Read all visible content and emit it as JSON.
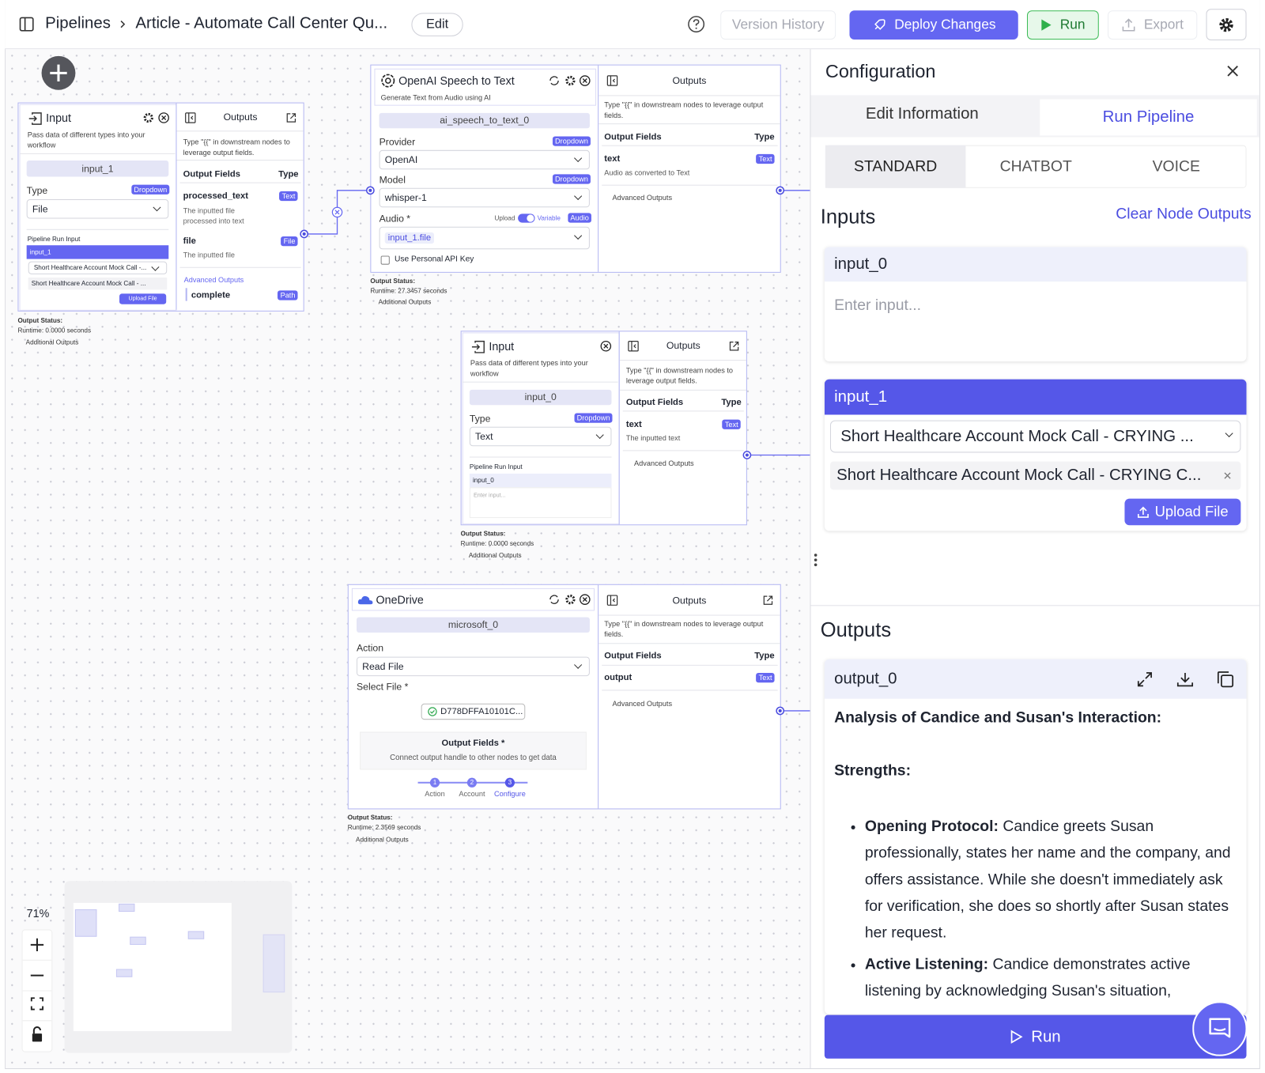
{
  "header": {
    "breadcrumb_root": "Pipelines",
    "pipeline_name": "Article - Automate Call Center Qu...",
    "edit_button": "Edit",
    "version_history": "Version History",
    "deploy_button": "Deploy Changes",
    "run_button": "Run",
    "export_button": "Export"
  },
  "canvas": {
    "zoom": "71%",
    "nodes": [
      {
        "title": "Input",
        "description": "Pass data of different types into your workflow",
        "node_id": "input_1",
        "field": {
          "label": "Type",
          "badge": "Dropdown",
          "value": "File"
        },
        "run_input": {
          "label": "Pipeline Run Input",
          "name": "input_1",
          "selected_file": "Short Healthcare Account Mock Call -...",
          "file_chip": "Short Healthcare Account Mock Call - ...",
          "upload_button": "Upload File"
        },
        "outputs": {
          "title": "Outputs",
          "hint": "Type \"{{\" in downstream nodes to leverage output fields.",
          "fields_header": "Output Fields",
          "type_header": "Type",
          "fields": [
            {
              "name": "processed_text",
              "type": "Text",
              "description": "The inputted file processed into text"
            },
            {
              "name": "file",
              "type": "File",
              "description": "The inputted file"
            }
          ],
          "advanced": "Advanced Outputs",
          "advanced_fields": [
            {
              "name": "complete",
              "type": "Path"
            }
          ]
        },
        "status": {
          "label": "Output Status:",
          "runtime": "Runtime: 0.0000 seconds",
          "additional": "Additional Outputs"
        }
      },
      {
        "title": "OpenAI Speech to Text",
        "subtitle": "Generate Text from Audio using AI",
        "node_id": "ai_speech_to_text_0",
        "fields": [
          {
            "label": "Provider",
            "badge": "Dropdown",
            "value": "OpenAI"
          },
          {
            "label": "Model",
            "badge": "Dropdown",
            "value": "whisper-1"
          }
        ],
        "audio": {
          "label": "Audio *",
          "toggle_left": "Upload",
          "toggle_right": "Variable",
          "badge": "Audio",
          "chip": "input_1.file"
        },
        "api_key_checkbox": "Use Personal API Key",
        "outputs": {
          "title": "Outputs",
          "hint": "Type \"{{\" in downstream nodes to leverage output fields.",
          "fields_header": "Output Fields",
          "type_header": "Type",
          "fields": [
            {
              "name": "text",
              "type": "Text",
              "description": "Audio as converted to Text"
            }
          ],
          "advanced": "Advanced Outputs"
        },
        "status": {
          "label": "Output Status:",
          "runtime": "Runtime: 27.3457 seconds",
          "additional": "Additional Outputs"
        }
      },
      {
        "title": "Input",
        "description": "Pass data of different types into your workflow",
        "node_id": "input_0",
        "field": {
          "label": "Type",
          "badge": "Dropdown",
          "value": "Text"
        },
        "run_input": {
          "label": "Pipeline Run Input",
          "name": "input_0",
          "placeholder": "Enter input..."
        },
        "outputs": {
          "title": "Outputs",
          "hint": "Type \"{{\" in downstream nodes to leverage output fields.",
          "fields_header": "Output Fields",
          "type_header": "Type",
          "fields": [
            {
              "name": "text",
              "type": "Text",
              "description": "The inputted text"
            }
          ],
          "advanced": "Advanced Outputs"
        },
        "status": {
          "label": "Output Status:",
          "runtime": "Runtime: 0.0000 seconds",
          "additional": "Additional Outputs"
        }
      },
      {
        "title": "OneDrive",
        "node_id": "microsoft_0",
        "action": {
          "label": "Action",
          "value": "Read File"
        },
        "select_file": {
          "label": "Select File *",
          "value": "D778DFFA10101C..."
        },
        "output_fields_box": {
          "title": "Output Fields *",
          "hint": "Connect output handle to other nodes to get data"
        },
        "steps": [
          {
            "number": 1,
            "label": "Action"
          },
          {
            "number": 2,
            "label": "Account"
          },
          {
            "number": 3,
            "label": "Configure"
          }
        ],
        "outputs": {
          "title": "Outputs",
          "hint": "Type \"{{\" in downstream nodes to leverage output fields.",
          "fields_header": "Output Fields",
          "type_header": "Type",
          "fields": [
            {
              "name": "output",
              "type": "Text"
            }
          ],
          "advanced": "Advanced Outputs"
        },
        "status": {
          "label": "Output Status:",
          "runtime": "Runtime: 2.3569 seconds",
          "additional": "Additional Outputs"
        }
      }
    ]
  },
  "config": {
    "title": "Configuration",
    "tabs": [
      "Edit Information",
      "Run Pipeline"
    ],
    "modes": [
      "STANDARD",
      "CHATBOT",
      "VOICE"
    ],
    "inputs_title": "Inputs",
    "clear_button": "Clear Node Outputs",
    "inputs": [
      {
        "name": "input_0",
        "placeholder": "Enter input..."
      },
      {
        "name": "input_1",
        "selected": "Short Healthcare Account Mock Call - CRYING ...",
        "file_chip": "Short Healthcare Account Mock Call - CRYING C...",
        "upload_button": "Upload File"
      }
    ],
    "outputs_title": "Outputs",
    "output": {
      "name": "output_0",
      "heading": "Analysis of Candice and Susan's Interaction:",
      "section": "Strengths:",
      "bullets": [
        {
          "label": "Opening Protocol:",
          "text": "Candice greets Susan professionally, states her name and the company, and offers assistance. While she doesn't immediately ask for verification, she does so shortly after Susan states her request."
        },
        {
          "label": "Active Listening:",
          "text": "Candice demonstrates active listening by acknowledging Susan's situation,"
        }
      ]
    },
    "run_button": "Run"
  }
}
